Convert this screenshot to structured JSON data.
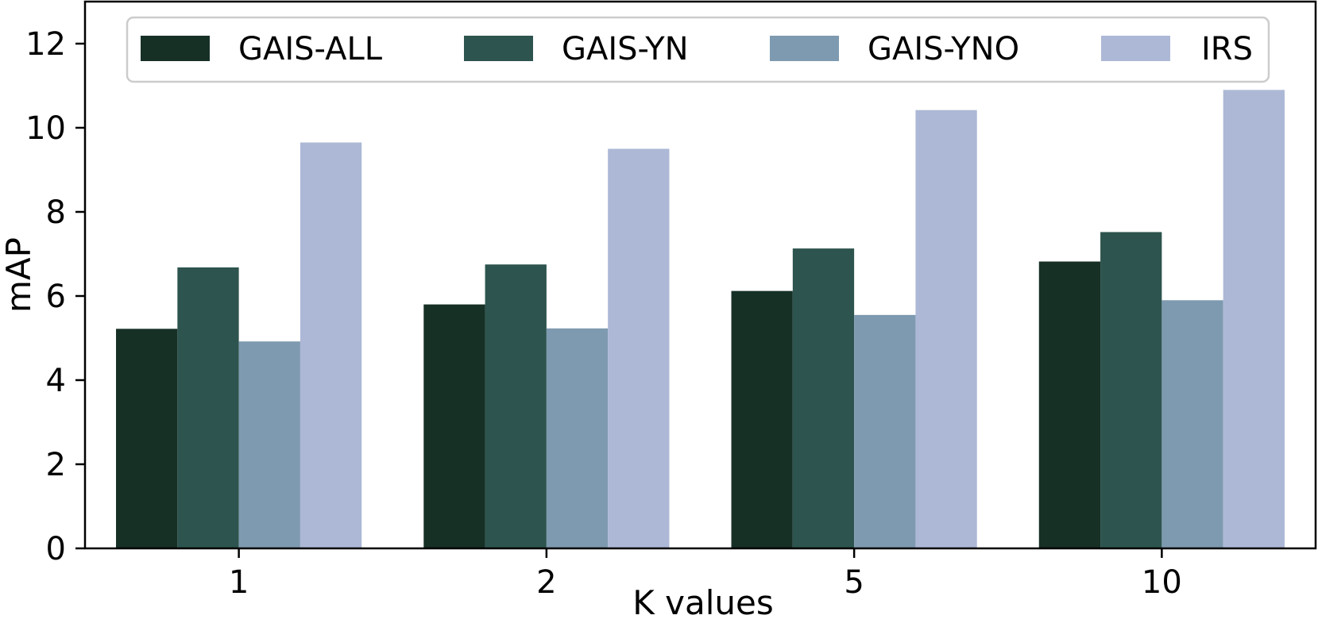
{
  "chart_data": {
    "type": "bar",
    "categories": [
      "1",
      "2",
      "5",
      "10"
    ],
    "series": [
      {
        "name": "GAIS-ALL",
        "color": "#163026",
        "values": [
          5.22,
          5.8,
          6.12,
          6.82
        ]
      },
      {
        "name": "GAIS-YN",
        "color": "#2d544e",
        "values": [
          6.68,
          6.75,
          7.13,
          7.52
        ]
      },
      {
        "name": "GAIS-YNO",
        "color": "#7e9ab0",
        "values": [
          4.92,
          5.23,
          5.55,
          5.9
        ]
      },
      {
        "name": "IRS",
        "color": "#adb8d6",
        "values": [
          9.65,
          9.5,
          10.42,
          10.9
        ]
      }
    ],
    "xlabel": "K values",
    "ylabel": "mAP",
    "ylim": [
      0,
      13
    ],
    "yticks": [
      "0",
      "2",
      "4",
      "6",
      "8",
      "10",
      "12"
    ],
    "grid": false,
    "legend_position": "top"
  }
}
